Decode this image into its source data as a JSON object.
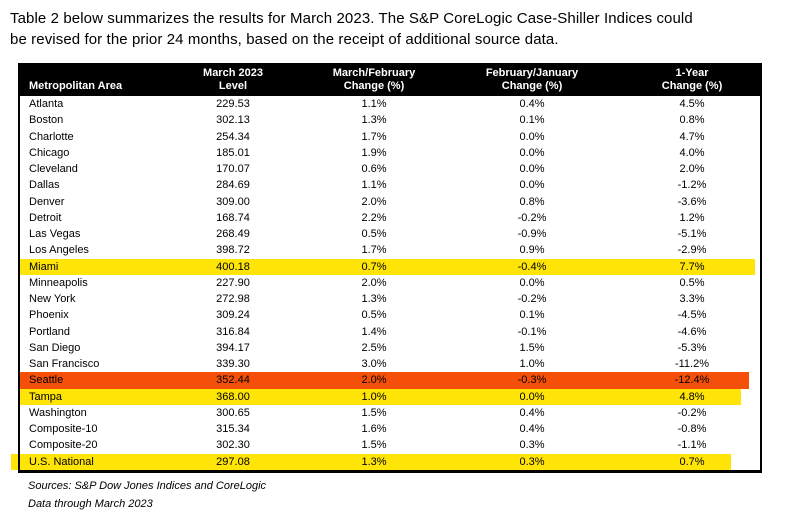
{
  "intro": {
    "text": "Table 2 below summarizes the results for March 2023. The S&P CoreLogic Case-Shiller Indices could\nbe revised for the prior 24 months, based on the receipt of additional source data."
  },
  "table": {
    "headers": {
      "metro": "Metropolitan Area",
      "level": "March 2023\nLevel",
      "mf": "March/February\nChange (%)",
      "fj": "February/January\nChange (%)",
      "yr": "1-Year\nChange (%)"
    },
    "rows": [
      {
        "metro": "Atlanta",
        "level": "229.53",
        "mf": "1.1%",
        "fj": "0.4%",
        "yr": "4.5%",
        "highlight": "none"
      },
      {
        "metro": "Boston",
        "level": "302.13",
        "mf": "1.3%",
        "fj": "0.1%",
        "yr": "0.8%",
        "highlight": "none"
      },
      {
        "metro": "Charlotte",
        "level": "254.34",
        "mf": "1.7%",
        "fj": "0.0%",
        "yr": "4.7%",
        "highlight": "none"
      },
      {
        "metro": "Chicago",
        "level": "185.01",
        "mf": "1.9%",
        "fj": "0.0%",
        "yr": "4.0%",
        "highlight": "none"
      },
      {
        "metro": "Cleveland",
        "level": "170.07",
        "mf": "0.6%",
        "fj": "0.0%",
        "yr": "2.0%",
        "highlight": "none"
      },
      {
        "metro": "Dallas",
        "level": "284.69",
        "mf": "1.1%",
        "fj": "0.0%",
        "yr": "-1.2%",
        "highlight": "none"
      },
      {
        "metro": "Denver",
        "level": "309.00",
        "mf": "2.0%",
        "fj": "0.8%",
        "yr": "-3.6%",
        "highlight": "none"
      },
      {
        "metro": "Detroit",
        "level": "168.74",
        "mf": "2.2%",
        "fj": "-0.2%",
        "yr": "1.2%",
        "highlight": "none"
      },
      {
        "metro": "Las Vegas",
        "level": "268.49",
        "mf": "0.5%",
        "fj": "-0.9%",
        "yr": "-5.1%",
        "highlight": "none"
      },
      {
        "metro": "Los Angeles",
        "level": "398.72",
        "mf": "1.7%",
        "fj": "0.9%",
        "yr": "-2.9%",
        "highlight": "none"
      },
      {
        "metro": "Miami",
        "level": "400.18",
        "mf": "0.7%",
        "fj": "-0.4%",
        "yr": "7.7%",
        "highlight": "yellow"
      },
      {
        "metro": "Minneapolis",
        "level": "227.90",
        "mf": "2.0%",
        "fj": "0.0%",
        "yr": "0.5%",
        "highlight": "none"
      },
      {
        "metro": "New York",
        "level": "272.98",
        "mf": "1.3%",
        "fj": "-0.2%",
        "yr": "3.3%",
        "highlight": "none"
      },
      {
        "metro": "Phoenix",
        "level": "309.24",
        "mf": "0.5%",
        "fj": "0.1%",
        "yr": "-4.5%",
        "highlight": "none"
      },
      {
        "metro": "Portland",
        "level": "316.84",
        "mf": "1.4%",
        "fj": "-0.1%",
        "yr": "-4.6%",
        "highlight": "none"
      },
      {
        "metro": "San Diego",
        "level": "394.17",
        "mf": "2.5%",
        "fj": "1.5%",
        "yr": "-5.3%",
        "highlight": "none"
      },
      {
        "metro": "San Francisco",
        "level": "339.30",
        "mf": "3.0%",
        "fj": "1.0%",
        "yr": "-11.2%",
        "highlight": "none"
      },
      {
        "metro": "Seattle",
        "level": "352.44",
        "mf": "2.0%",
        "fj": "-0.3%",
        "yr": "-12.4%",
        "highlight": "orange"
      },
      {
        "metro": "Tampa",
        "level": "368.00",
        "mf": "1.0%",
        "fj": "0.0%",
        "yr": "4.8%",
        "highlight": "yellow-short"
      },
      {
        "metro": "Washington",
        "level": "300.65",
        "mf": "1.5%",
        "fj": "0.4%",
        "yr": "-0.2%",
        "highlight": "none"
      },
      {
        "metro": "Composite-10",
        "level": "315.34",
        "mf": "1.6%",
        "fj": "0.4%",
        "yr": "-0.8%",
        "highlight": "none"
      },
      {
        "metro": "Composite-20",
        "level": "302.30",
        "mf": "1.5%",
        "fj": "0.3%",
        "yr": "-1.1%",
        "highlight": "none"
      },
      {
        "metro": "U.S. National",
        "level": "297.08",
        "mf": "1.3%",
        "fj": "0.3%",
        "yr": "0.7%",
        "highlight": "yellow-overhang"
      }
    ]
  },
  "footer": {
    "sources": "Sources: S&P Dow Jones Indices and CoreLogic",
    "data_through": "Data through March 2023"
  },
  "colors": {
    "highlight_yellow": "#FFE408",
    "highlight_orange": "#F4500A",
    "header_bg": "#000000"
  }
}
